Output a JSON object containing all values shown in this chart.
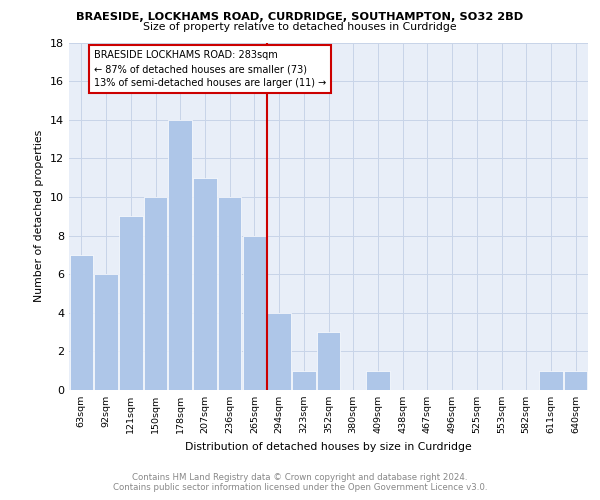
{
  "title": "BRAESIDE, LOCKHAMS ROAD, CURDRIDGE, SOUTHAMPTON, SO32 2BD",
  "subtitle": "Size of property relative to detached houses in Curdridge",
  "xlabel": "Distribution of detached houses by size in Curdridge",
  "ylabel": "Number of detached properties",
  "categories": [
    "63sqm",
    "92sqm",
    "121sqm",
    "150sqm",
    "178sqm",
    "207sqm",
    "236sqm",
    "265sqm",
    "294sqm",
    "323sqm",
    "352sqm",
    "380sqm",
    "409sqm",
    "438sqm",
    "467sqm",
    "496sqm",
    "525sqm",
    "553sqm",
    "582sqm",
    "611sqm",
    "640sqm"
  ],
  "values": [
    7,
    6,
    9,
    10,
    14,
    11,
    10,
    8,
    4,
    1,
    3,
    0,
    1,
    0,
    0,
    0,
    0,
    0,
    0,
    1,
    1
  ],
  "bar_color": "#aec6e8",
  "bar_edge_color": "#ffffff",
  "reference_line_color": "#cc0000",
  "annotation_text": "BRAESIDE LOCKHAMS ROAD: 283sqm\n← 87% of detached houses are smaller (73)\n13% of semi-detached houses are larger (11) →",
  "annotation_box_color": "#cc0000",
  "grid_color": "#c8d4e8",
  "background_color": "#e8eef8",
  "footer_text": "Contains HM Land Registry data © Crown copyright and database right 2024.\nContains public sector information licensed under the Open Government Licence v3.0.",
  "ylim": [
    0,
    18
  ],
  "yticks": [
    0,
    2,
    4,
    6,
    8,
    10,
    12,
    14,
    16,
    18
  ]
}
